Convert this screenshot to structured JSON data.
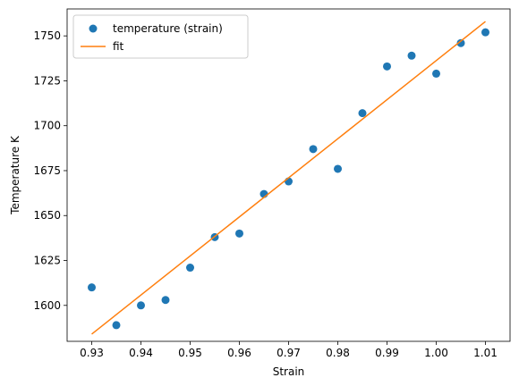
{
  "chart_data": {
    "type": "scatter",
    "title": "",
    "xlabel": "Strain",
    "ylabel": "Temperature K",
    "xlim": [
      0.925,
      1.015
    ],
    "ylim": [
      1580,
      1765
    ],
    "grid": false,
    "legend_position": "upper-left",
    "xticks": [
      0.93,
      0.94,
      0.95,
      0.96,
      0.97,
      0.98,
      0.99,
      1.0,
      1.01
    ],
    "xtick_labels": [
      "0.93",
      "0.94",
      "0.95",
      "0.96",
      "0.97",
      "0.98",
      "0.99",
      "1.00",
      "1.01"
    ],
    "yticks": [
      1600,
      1625,
      1650,
      1675,
      1700,
      1725,
      1750
    ],
    "ytick_labels": [
      "1600",
      "1625",
      "1650",
      "1675",
      "1700",
      "1725",
      "1750"
    ],
    "series": [
      {
        "name": "temperature (strain)",
        "kind": "scatter",
        "color": "#1f77b4",
        "x": [
          0.93,
          0.935,
          0.94,
          0.945,
          0.95,
          0.955,
          0.96,
          0.965,
          0.97,
          0.975,
          0.98,
          0.985,
          0.99,
          0.995,
          1.0,
          1.005,
          1.01
        ],
        "y": [
          1610,
          1589,
          1600,
          1603,
          1621,
          1638,
          1640,
          1662,
          1669,
          1687,
          1676,
          1707,
          1733,
          1739,
          1729,
          1746,
          1752
        ]
      },
      {
        "name": "fit",
        "kind": "line",
        "color": "#ff7f0e",
        "x": [
          0.93,
          1.01
        ],
        "y": [
          1584,
          1758
        ]
      }
    ]
  }
}
